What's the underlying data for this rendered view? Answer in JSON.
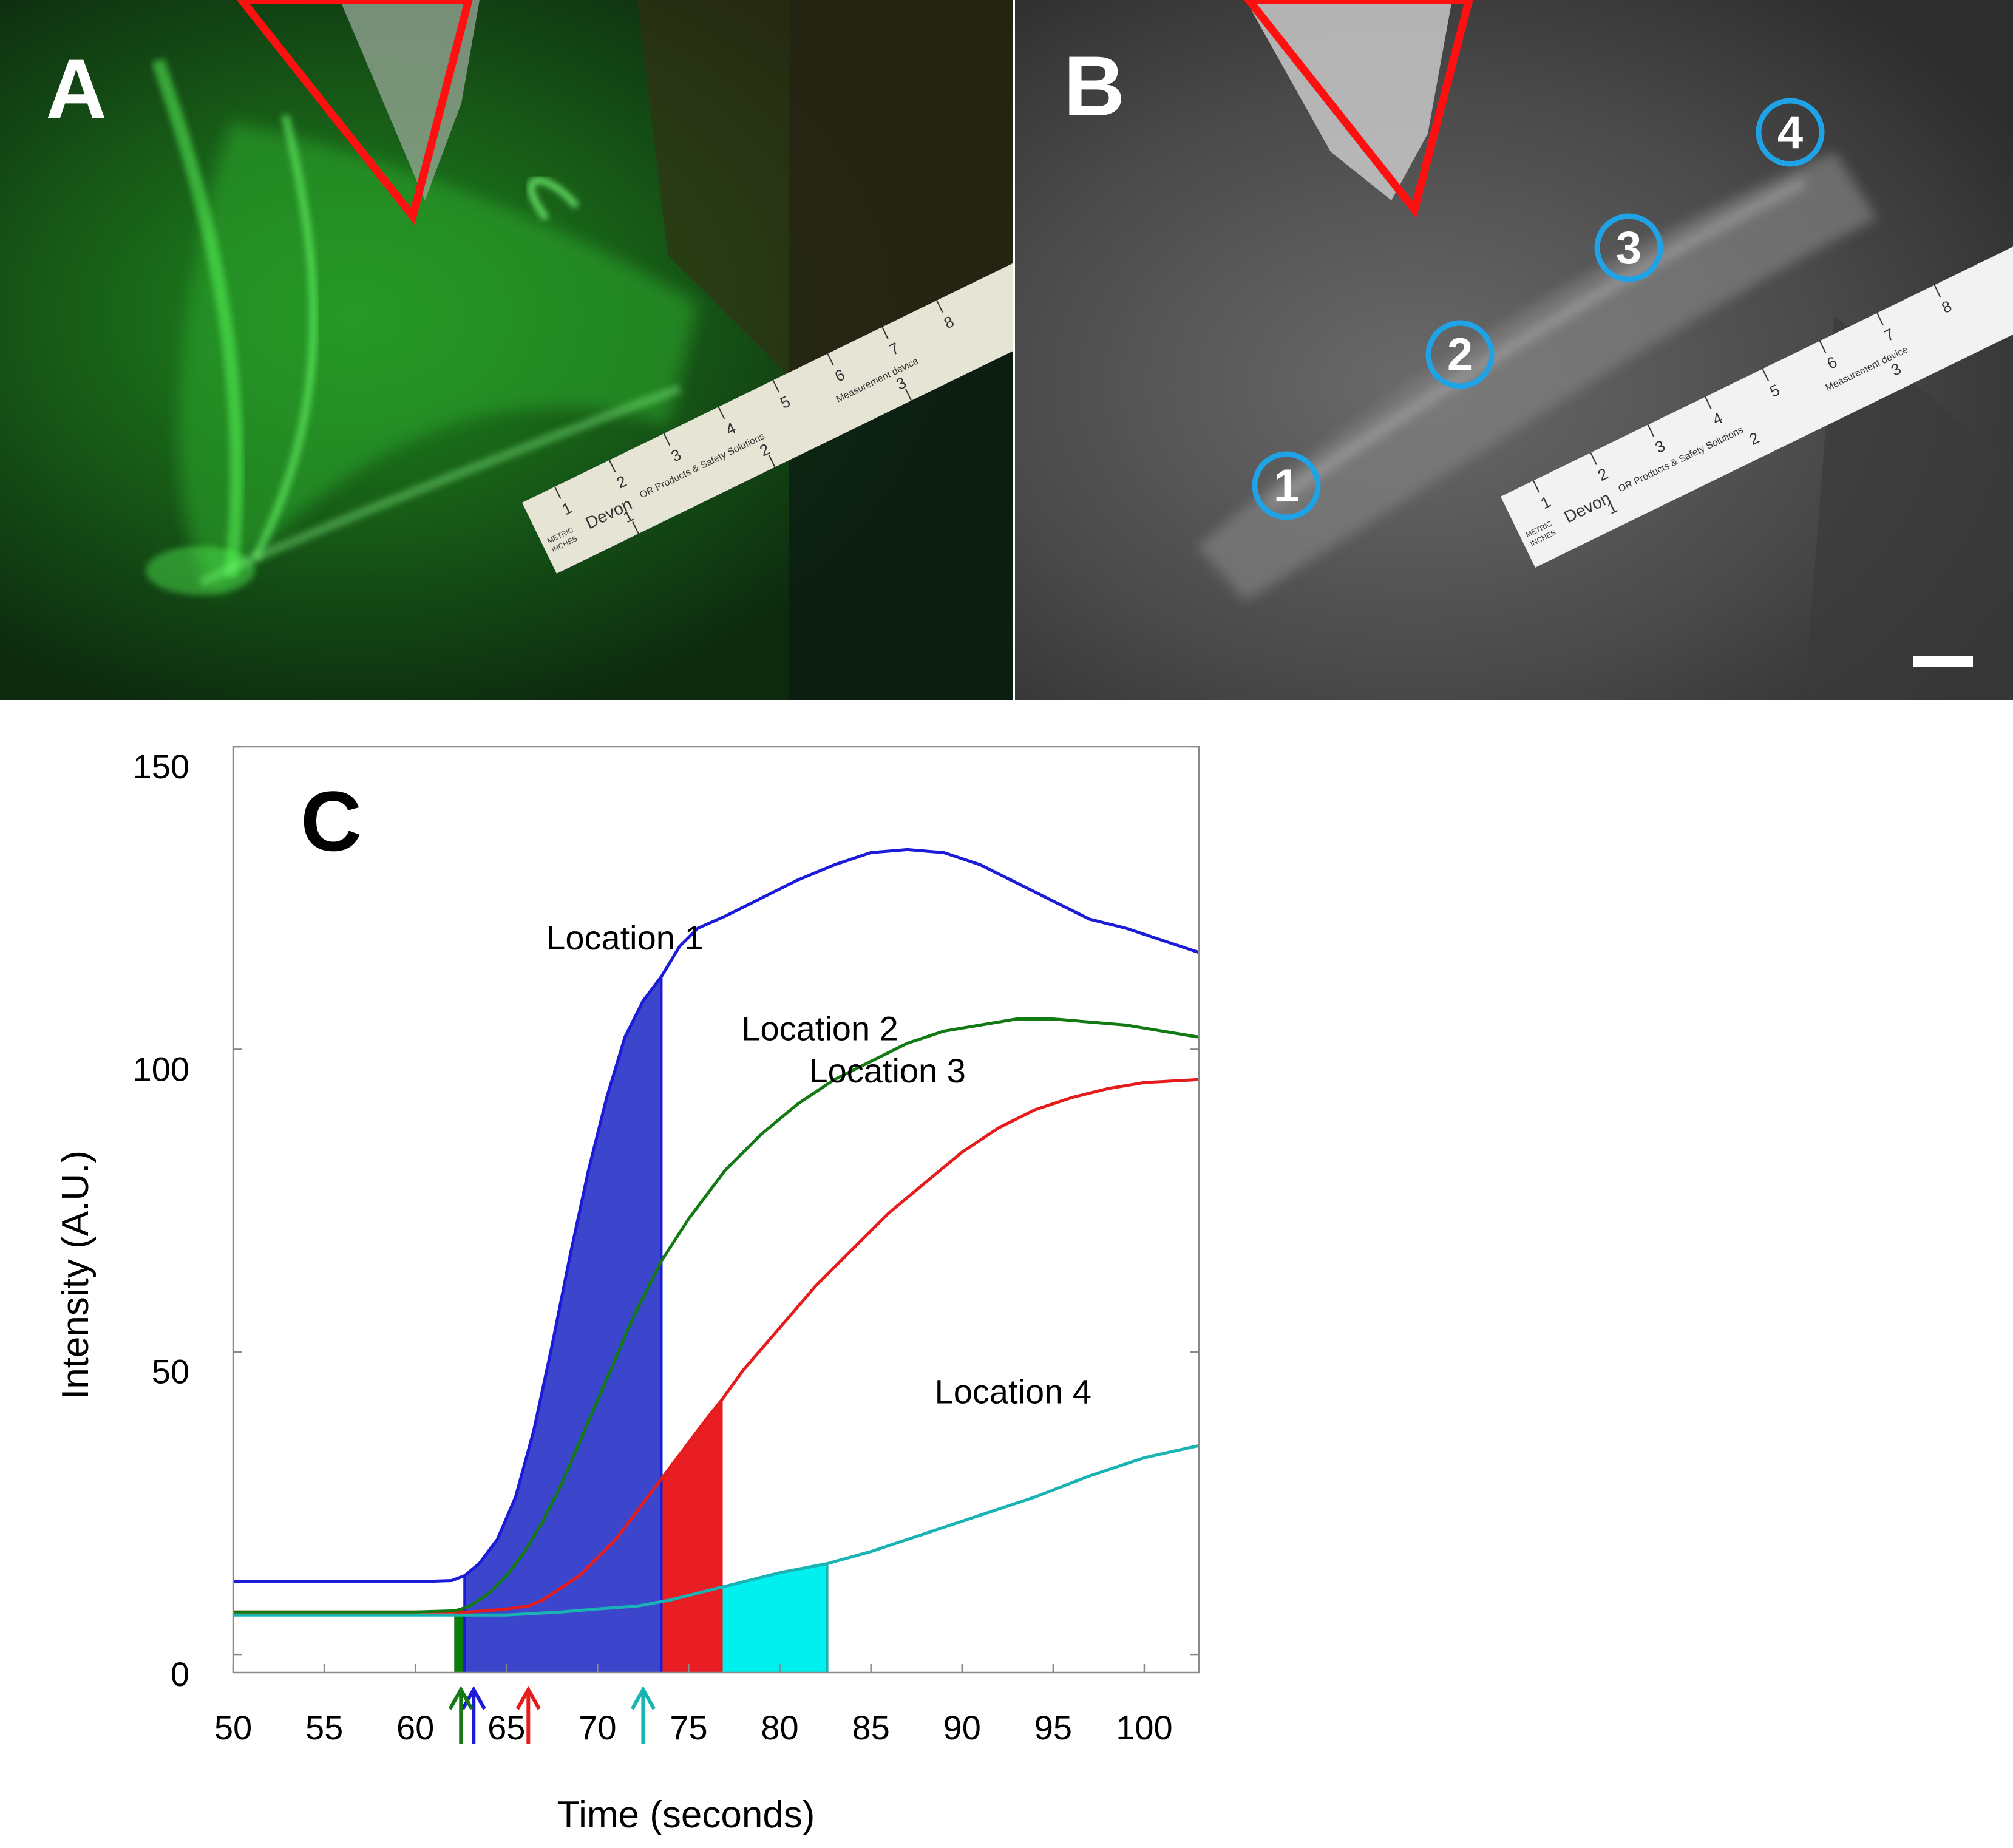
{
  "panels": {
    "a": {
      "letter": "A"
    },
    "b": {
      "letter": "B",
      "locations": [
        "1",
        "2",
        "3",
        "4"
      ]
    }
  },
  "ruler": {
    "top_numbers": [
      "1",
      "2",
      "3",
      "4",
      "5",
      "6",
      "7",
      "8"
    ],
    "bottom_numbers": [
      "1",
      "2",
      "3"
    ],
    "text_metric": "METRIC",
    "text_inches": "INCHES",
    "brand": "Devon",
    "text_products": "OR Products & Safety Solutions",
    "text_measure": "Measurement device"
  },
  "chart_data": {
    "type": "line",
    "panel_letter": "C",
    "xlabel": "Time (seconds)",
    "ylabel": "Intensity (A.U.)",
    "xlim": [
      50,
      103
    ],
    "ylim": [
      -3,
      150
    ],
    "xticks": [
      50,
      55,
      60,
      65,
      70,
      75,
      80,
      85,
      90,
      95,
      100
    ],
    "yticks": [
      0,
      50,
      100,
      150
    ],
    "series": [
      {
        "name": "Location 1",
        "color": "#1c1cd8",
        "fill": "#3c46cc",
        "shade_from": 62.7,
        "shade_to": 73.5,
        "arrow_x": 63.2,
        "label_x": 71.5,
        "label_y": 116.5,
        "x": [
          50,
          55,
          60,
          62,
          62.7,
          63.5,
          64.5,
          65.5,
          66.5,
          67.5,
          68.5,
          69.5,
          70.5,
          71.5,
          72.5,
          73.5,
          74.5,
          75.5,
          77,
          79,
          81,
          83,
          85,
          87,
          89,
          91,
          93,
          95,
          97,
          99,
          101,
          103
        ],
        "y": [
          12,
          12,
          12,
          12.2,
          13,
          15,
          19,
          26,
          37,
          51,
          66,
          80,
          92,
          102,
          108,
          112,
          117,
          120,
          122,
          125,
          128,
          130.5,
          132.5,
          133,
          132.5,
          130.5,
          127.5,
          124.5,
          121.5,
          120,
          118,
          116
        ]
      },
      {
        "name": "Location 2",
        "color": "#137a13",
        "fill": "#0b7d0b",
        "shade_from": 62.2,
        "shade_to": 73.5,
        "arrow_x": 62.5,
        "label_x": 82.2,
        "label_y": 101.5,
        "x": [
          50,
          55,
          60,
          62.2,
          63,
          64,
          65,
          66,
          67,
          68,
          69,
          70,
          71,
          72,
          73,
          73.5,
          75,
          77,
          79,
          81,
          83,
          85,
          87,
          89,
          91,
          93,
          95,
          97,
          99,
          101,
          103
        ],
        "y": [
          7,
          7,
          7,
          7.2,
          8,
          10,
          13,
          17,
          22,
          28,
          35,
          42,
          49,
          56,
          62,
          65,
          72,
          80,
          86,
          91,
          95,
          98,
          101,
          103,
          104,
          105,
          105,
          104.5,
          104,
          103,
          102
        ]
      },
      {
        "name": "Location 3",
        "color": "#e61c1c",
        "fill": "#e81e24",
        "shade_from": 66.2,
        "shade_to": 76.8,
        "arrow_x": 66.2,
        "label_x": 85.9,
        "label_y": 94.5,
        "x": [
          50,
          55,
          60,
          63,
          65,
          66.2,
          67,
          68,
          69,
          70,
          71,
          72,
          73,
          74,
          75,
          76,
          76.8,
          78,
          80,
          82,
          84,
          86,
          88,
          90,
          92,
          94,
          96,
          98,
          100,
          103
        ],
        "y": [
          7,
          7,
          7,
          7,
          7.5,
          8,
          9,
          11,
          13,
          16,
          19,
          23,
          27,
          31,
          35,
          39,
          42,
          47,
          54,
          61,
          67,
          73,
          78,
          83,
          87,
          90,
          92,
          93.5,
          94.5,
          95
        ]
      },
      {
        "name": "Location 4",
        "color": "#19b3b3",
        "fill": "#00f0f0",
        "shade_from": 72.2,
        "shade_to": 82.6,
        "arrow_x": 72.5,
        "label_x": 92.8,
        "label_y": 41.5,
        "x": [
          50,
          55,
          60,
          65,
          68,
          70,
          72.2,
          74,
          76,
          78,
          80,
          82.6,
          85,
          88,
          91,
          94,
          97,
          100,
          103
        ],
        "y": [
          6.5,
          6.5,
          6.5,
          6.5,
          7,
          7.5,
          8,
          9,
          10.5,
          12,
          13.5,
          15,
          17,
          20,
          23,
          26,
          29.5,
          32.5,
          34.5
        ]
      }
    ]
  }
}
